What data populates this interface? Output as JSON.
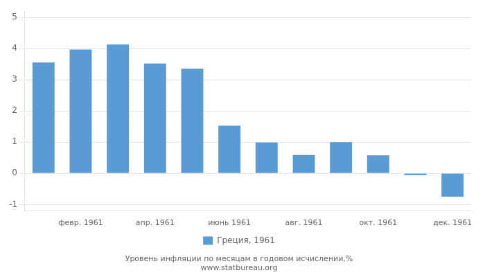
{
  "chart_data": {
    "type": "bar",
    "categories": [
      null,
      "февр. 1961",
      null,
      "апр. 1961",
      null,
      "июнь 1961",
      null,
      "авг. 1961",
      null,
      "окт. 1961",
      null,
      "дек. 1961"
    ],
    "series": [
      {
        "name": "Греция, 1961",
        "color": "#5b9bd5",
        "values": [
          3.55,
          3.97,
          4.13,
          3.52,
          3.35,
          1.53,
          0.99,
          0.59,
          1.0,
          0.58,
          -0.06,
          -0.75
        ]
      }
    ],
    "ylim": [
      -1.2,
      5.2
    ],
    "yticks": [
      -1,
      0,
      1,
      2,
      3,
      4,
      5
    ],
    "grid": true,
    "legend": "bottom",
    "annotations": [
      "Уровень инфляции по месяцам в годовом исчислении,%",
      "www.statbureau.org"
    ]
  }
}
